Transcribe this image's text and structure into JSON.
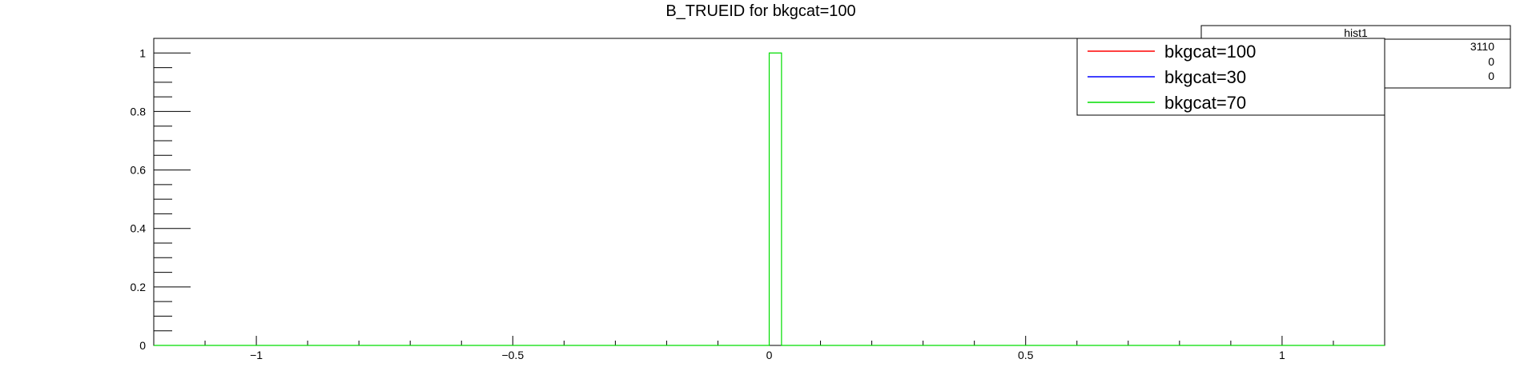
{
  "chart_data": {
    "type": "step",
    "title": "B_TRUEID for bkgcat=100",
    "xlim": [
      -1.2,
      1.2
    ],
    "ylim": [
      0,
      1.05
    ],
    "x_ticks": [
      -1,
      -0.5,
      0,
      0.5,
      1
    ],
    "x_tick_labels": [
      "−1",
      "−0.5",
      "0",
      "0.5",
      "1"
    ],
    "y_ticks": [
      0,
      0.2,
      0.4,
      0.6,
      0.8,
      1
    ],
    "y_tick_labels": [
      "0",
      "0.2",
      "0.4",
      "0.6",
      "0.8",
      "1"
    ],
    "series": [
      {
        "name": "bkgcat=100",
        "color": "#ff0000",
        "bins": []
      },
      {
        "name": "bkgcat=30",
        "color": "#0000ff",
        "bins": []
      },
      {
        "name": "bkgcat=70",
        "color": "#00dd00",
        "bins": [
          {
            "x0": 0,
            "x1": 0.024,
            "y": 1
          }
        ]
      }
    ],
    "legend_position": "top-right",
    "stats_box": {
      "title": "hist1",
      "values": [
        "3110",
        "0",
        "0"
      ]
    }
  }
}
